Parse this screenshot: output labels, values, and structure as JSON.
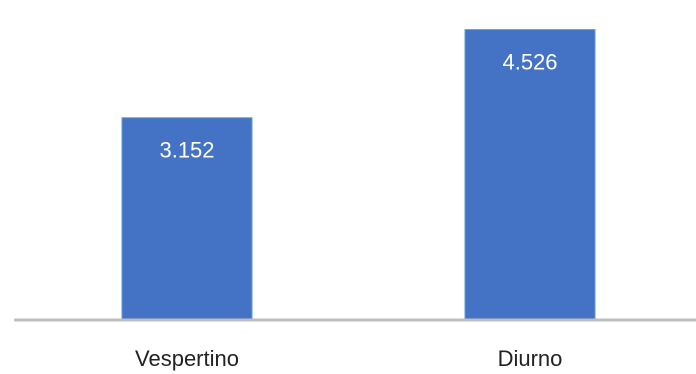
{
  "chart_data": {
    "type": "bar",
    "categories": [
      "Vespertino",
      "Diurno"
    ],
    "values": [
      3152,
      4526
    ],
    "value_labels": [
      "3.152",
      "4.526"
    ],
    "ylim": [
      0,
      4800
    ],
    "grid": false,
    "legend": "none",
    "bar_color": "#4472c4",
    "axis_color": "#bfbfbf"
  }
}
